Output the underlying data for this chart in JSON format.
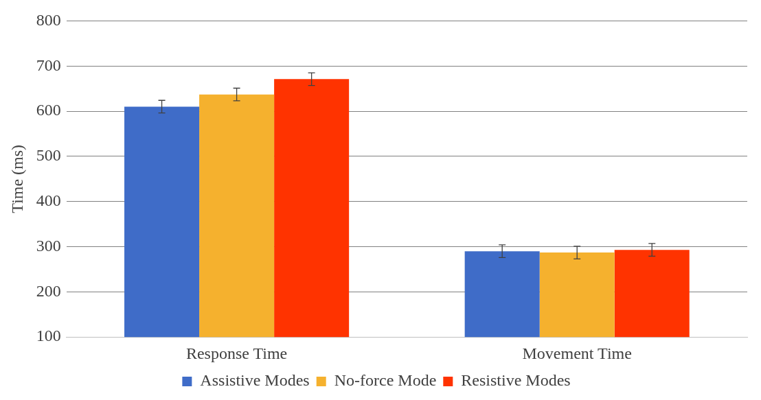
{
  "chart_data": {
    "type": "bar",
    "ylabel": "Time (ms)",
    "categories": [
      "Response Time",
      "Movement Time"
    ],
    "series": [
      {
        "name": "Assistive Modes",
        "color": "#3f6cc8",
        "values": [
          610,
          290
        ],
        "errors": [
          14,
          14
        ]
      },
      {
        "name": "No-force Mode",
        "color": "#f5b12e",
        "values": [
          637,
          287
        ],
        "errors": [
          14,
          14
        ]
      },
      {
        "name": "Resistive Modes",
        "color": "#ff3300",
        "values": [
          671,
          293
        ],
        "errors": [
          14,
          14
        ]
      }
    ],
    "ylim": [
      100,
      800
    ],
    "yticks": [
      100,
      200,
      300,
      400,
      500,
      600,
      700,
      800
    ],
    "grid": "y",
    "legend": "bottom"
  }
}
